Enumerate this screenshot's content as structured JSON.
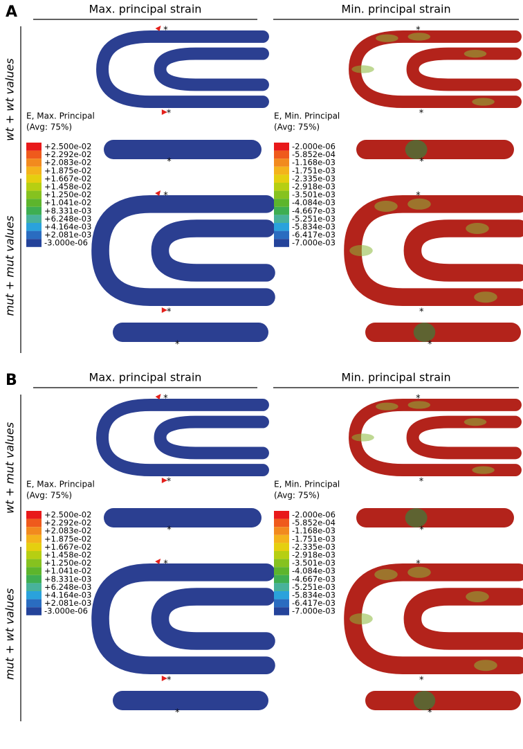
{
  "panels": [
    {
      "label": "A",
      "columns": [
        "Max. principal strain",
        "Min. principal strain"
      ],
      "rows": [
        "wt + wt values",
        "mut + mut values"
      ]
    },
    {
      "label": "B",
      "columns": [
        "Max. principal strain",
        "Min. principal strain"
      ],
      "rows": [
        "wt + mut values",
        "mut + wt values"
      ]
    }
  ],
  "legends": [
    {
      "title": "E, Max. Principal",
      "subtitle": "(Avg: 75%)",
      "labels": [
        "+2.500e-02",
        "+2.292e-02",
        "+2.083e-02",
        "+1.875e-02",
        "+1.667e-02",
        "+1.458e-02",
        "+1.250e-02",
        "+1.041e-02",
        "+8.331e-03",
        "+6.248e-03",
        "+4.164e-03",
        "+2.081e-03",
        "-3.000e-06"
      ]
    },
    {
      "title": "E, Min. Principal",
      "subtitle": "(Avg: 75%)",
      "labels": [
        "-2.000e-06",
        "-5.852e-04",
        "-1.168e-03",
        "-1.751e-03",
        "-2.335e-03",
        "-2.918e-03",
        "-3.501e-03",
        "-4.084e-03",
        "-4.667e-03",
        "-5.251e-03",
        "-5.834e-03",
        "-6.417e-03",
        "-7.000e-03"
      ]
    }
  ],
  "legend_colors": [
    "#e8191a",
    "#ef5a1c",
    "#f28a1e",
    "#f4b31b",
    "#e5cf0f",
    "#b6cf12",
    "#86c21f",
    "#5db52c",
    "#3eae52",
    "#48b29b",
    "#2aa2dc",
    "#2a6cc0",
    "#24439a"
  ],
  "marker": "*"
}
